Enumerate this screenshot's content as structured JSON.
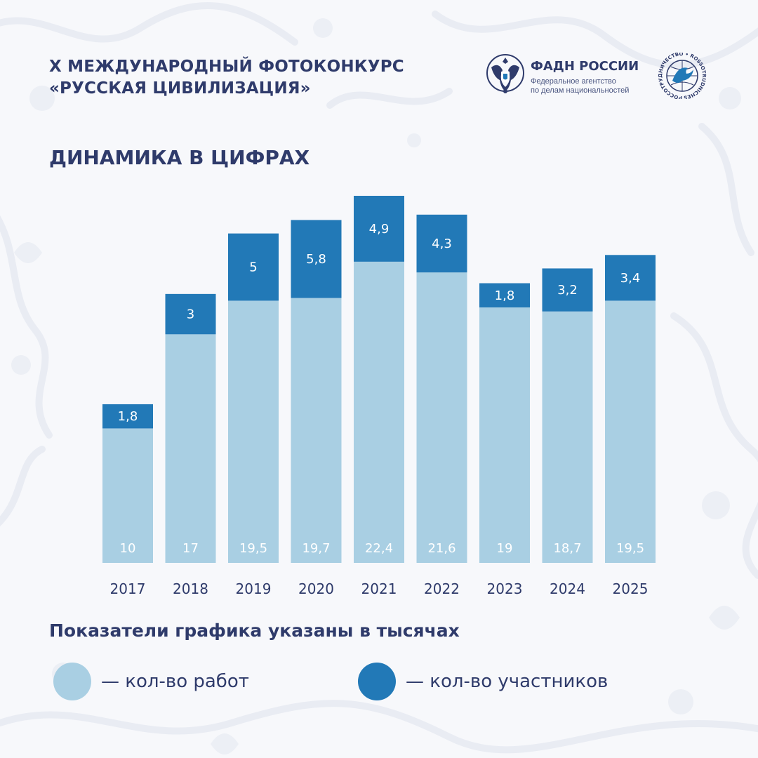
{
  "header": {
    "title_line1": "X МЕЖДУНАРОДНЫЙ ФОТОКОНКУРС",
    "title_line2": "«РУССКАЯ ЦИВИЛИЗАЦИЯ»"
  },
  "logos": {
    "fadn_name": "ФАДН РОССИИ",
    "fadn_sub_line1": "Федеральное агентство",
    "fadn_sub_line2": "по делам национальностей",
    "rossotr_ring_text": "РОССОТРУДНИЧЕСТВО • ROSSOTRUDNICHESTVO"
  },
  "section_title": "ДИНАМИКА В ЦИФРАХ",
  "note": "Показатели графика указаны в тысячах",
  "legend": [
    {
      "label": "— кол-во работ",
      "color": "#a9cfe3"
    },
    {
      "label": "— кол-во участников",
      "color": "#2279b7"
    }
  ],
  "colors": {
    "works": "#a9cfe3",
    "participants": "#2279b7",
    "text": "#2f3b6b"
  },
  "chart_data": {
    "type": "bar",
    "stacked": true,
    "categories": [
      "2017",
      "2018",
      "2019",
      "2020",
      "2021",
      "2022",
      "2023",
      "2024",
      "2025"
    ],
    "series": [
      {
        "name": "кол-во работ",
        "values": [
          10,
          17,
          19.5,
          19.7,
          22.4,
          21.6,
          19,
          18.7,
          19.5
        ],
        "labels": [
          "10",
          "17",
          "19,5",
          "19,7",
          "22,4",
          "21,6",
          "19",
          "18,7",
          "19,5"
        ]
      },
      {
        "name": "кол-во участников",
        "values": [
          1.8,
          3,
          5,
          5.8,
          4.9,
          4.3,
          1.8,
          3.2,
          3.4
        ],
        "labels": [
          "1,8",
          "3",
          "5",
          "5,8",
          "4,9",
          "4,3",
          "1,8",
          "3,2",
          "3,4"
        ]
      }
    ],
    "title": "ДИНАМИКА В ЦИФРАХ",
    "xlabel": "",
    "ylabel": "",
    "grid": false,
    "legend_position": "bottom"
  }
}
